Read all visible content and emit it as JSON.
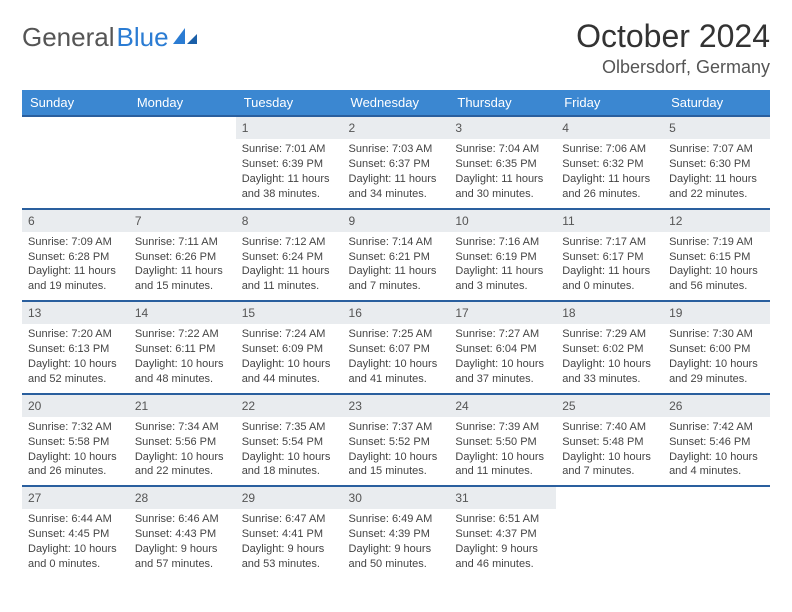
{
  "brand": {
    "part1": "General",
    "part2": "Blue"
  },
  "title": "October 2024",
  "location": "Olbersdorf, Germany",
  "colors": {
    "header_bg": "#3b87d1",
    "header_text": "#ffffff",
    "border": "#2a5f9e",
    "daynum_bg": "#e9ecef",
    "text": "#444444"
  },
  "weekdays": [
    "Sunday",
    "Monday",
    "Tuesday",
    "Wednesday",
    "Thursday",
    "Friday",
    "Saturday"
  ],
  "labels": {
    "sunrise": "Sunrise:",
    "sunset": "Sunset:",
    "daylight": "Daylight:"
  },
  "weeks": [
    [
      null,
      null,
      {
        "n": "1",
        "sr": "7:01 AM",
        "ss": "6:39 PM",
        "dl": "11 hours and 38 minutes."
      },
      {
        "n": "2",
        "sr": "7:03 AM",
        "ss": "6:37 PM",
        "dl": "11 hours and 34 minutes."
      },
      {
        "n": "3",
        "sr": "7:04 AM",
        "ss": "6:35 PM",
        "dl": "11 hours and 30 minutes."
      },
      {
        "n": "4",
        "sr": "7:06 AM",
        "ss": "6:32 PM",
        "dl": "11 hours and 26 minutes."
      },
      {
        "n": "5",
        "sr": "7:07 AM",
        "ss": "6:30 PM",
        "dl": "11 hours and 22 minutes."
      }
    ],
    [
      {
        "n": "6",
        "sr": "7:09 AM",
        "ss": "6:28 PM",
        "dl": "11 hours and 19 minutes."
      },
      {
        "n": "7",
        "sr": "7:11 AM",
        "ss": "6:26 PM",
        "dl": "11 hours and 15 minutes."
      },
      {
        "n": "8",
        "sr": "7:12 AM",
        "ss": "6:24 PM",
        "dl": "11 hours and 11 minutes."
      },
      {
        "n": "9",
        "sr": "7:14 AM",
        "ss": "6:21 PM",
        "dl": "11 hours and 7 minutes."
      },
      {
        "n": "10",
        "sr": "7:16 AM",
        "ss": "6:19 PM",
        "dl": "11 hours and 3 minutes."
      },
      {
        "n": "11",
        "sr": "7:17 AM",
        "ss": "6:17 PM",
        "dl": "11 hours and 0 minutes."
      },
      {
        "n": "12",
        "sr": "7:19 AM",
        "ss": "6:15 PM",
        "dl": "10 hours and 56 minutes."
      }
    ],
    [
      {
        "n": "13",
        "sr": "7:20 AM",
        "ss": "6:13 PM",
        "dl": "10 hours and 52 minutes."
      },
      {
        "n": "14",
        "sr": "7:22 AM",
        "ss": "6:11 PM",
        "dl": "10 hours and 48 minutes."
      },
      {
        "n": "15",
        "sr": "7:24 AM",
        "ss": "6:09 PM",
        "dl": "10 hours and 44 minutes."
      },
      {
        "n": "16",
        "sr": "7:25 AM",
        "ss": "6:07 PM",
        "dl": "10 hours and 41 minutes."
      },
      {
        "n": "17",
        "sr": "7:27 AM",
        "ss": "6:04 PM",
        "dl": "10 hours and 37 minutes."
      },
      {
        "n": "18",
        "sr": "7:29 AM",
        "ss": "6:02 PM",
        "dl": "10 hours and 33 minutes."
      },
      {
        "n": "19",
        "sr": "7:30 AM",
        "ss": "6:00 PM",
        "dl": "10 hours and 29 minutes."
      }
    ],
    [
      {
        "n": "20",
        "sr": "7:32 AM",
        "ss": "5:58 PM",
        "dl": "10 hours and 26 minutes."
      },
      {
        "n": "21",
        "sr": "7:34 AM",
        "ss": "5:56 PM",
        "dl": "10 hours and 22 minutes."
      },
      {
        "n": "22",
        "sr": "7:35 AM",
        "ss": "5:54 PM",
        "dl": "10 hours and 18 minutes."
      },
      {
        "n": "23",
        "sr": "7:37 AM",
        "ss": "5:52 PM",
        "dl": "10 hours and 15 minutes."
      },
      {
        "n": "24",
        "sr": "7:39 AM",
        "ss": "5:50 PM",
        "dl": "10 hours and 11 minutes."
      },
      {
        "n": "25",
        "sr": "7:40 AM",
        "ss": "5:48 PM",
        "dl": "10 hours and 7 minutes."
      },
      {
        "n": "26",
        "sr": "7:42 AM",
        "ss": "5:46 PM",
        "dl": "10 hours and 4 minutes."
      }
    ],
    [
      {
        "n": "27",
        "sr": "6:44 AM",
        "ss": "4:45 PM",
        "dl": "10 hours and 0 minutes."
      },
      {
        "n": "28",
        "sr": "6:46 AM",
        "ss": "4:43 PM",
        "dl": "9 hours and 57 minutes."
      },
      {
        "n": "29",
        "sr": "6:47 AM",
        "ss": "4:41 PM",
        "dl": "9 hours and 53 minutes."
      },
      {
        "n": "30",
        "sr": "6:49 AM",
        "ss": "4:39 PM",
        "dl": "9 hours and 50 minutes."
      },
      {
        "n": "31",
        "sr": "6:51 AM",
        "ss": "4:37 PM",
        "dl": "9 hours and 46 minutes."
      },
      null,
      null
    ]
  ]
}
